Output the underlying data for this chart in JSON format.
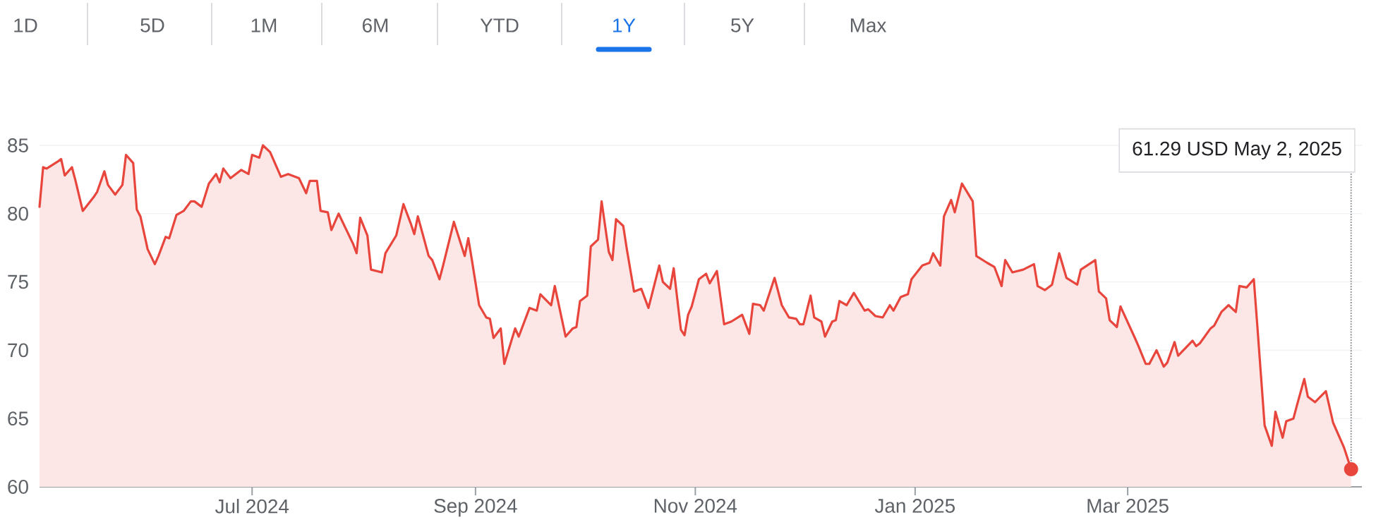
{
  "chart_data": {
    "type": "area",
    "color": "#e8453c",
    "grid": "y",
    "xlim": [
      "2024-05-03",
      "2025-05-05"
    ],
    "ylim": [
      60,
      85
    ],
    "xticks": [
      {
        "value": "2024-07-01",
        "label": "Jul 2024"
      },
      {
        "value": "2024-09-01",
        "label": "Sep 2024"
      },
      {
        "value": "2024-11-01",
        "label": "Nov 2024"
      },
      {
        "value": "2025-01-01",
        "label": "Jan 2025"
      },
      {
        "value": "2025-03-01",
        "label": "Mar 2025"
      }
    ],
    "yticks": [
      60,
      65,
      70,
      75,
      80,
      85
    ],
    "annotations": [
      "1D",
      "5D",
      "1M",
      "6M",
      "YTD",
      "1Y",
      "5Y",
      "Max",
      {
        "text": "61.29 USD  May 2, 2025",
        "x": "2025-05-02",
        "y": 61.29
      }
    ],
    "x": [
      "2024-05-03",
      "2024-05-04",
      "2024-05-05",
      "2024-05-08",
      "2024-05-09",
      "2024-05-10",
      "2024-05-12",
      "2024-05-13",
      "2024-05-15",
      "2024-05-18",
      "2024-05-19",
      "2024-05-21",
      "2024-05-22",
      "2024-05-24",
      "2024-05-26",
      "2024-05-27",
      "2024-05-29",
      "2024-05-30",
      "2024-05-31",
      "2024-06-02",
      "2024-06-04",
      "2024-06-05",
      "2024-06-07",
      "2024-06-08",
      "2024-06-10",
      "2024-06-12",
      "2024-06-14",
      "2024-06-15",
      "2024-06-17",
      "2024-06-19",
      "2024-06-21",
      "2024-06-22",
      "2024-06-23",
      "2024-06-25",
      "2024-06-28",
      "2024-06-30",
      "2024-07-01",
      "2024-07-03",
      "2024-07-04",
      "2024-07-06",
      "2024-07-09",
      "2024-07-11",
      "2024-07-14",
      "2024-07-16",
      "2024-07-17",
      "2024-07-19",
      "2024-07-20",
      "2024-07-22",
      "2024-07-23",
      "2024-07-25",
      "2024-07-29",
      "2024-07-30",
      "2024-07-31",
      "2024-08-02",
      "2024-08-03",
      "2024-08-06",
      "2024-08-07",
      "2024-08-10",
      "2024-08-12",
      "2024-08-14",
      "2024-08-15",
      "2024-08-16",
      "2024-08-19",
      "2024-08-20",
      "2024-08-22",
      "2024-08-23",
      "2024-08-26",
      "2024-08-29",
      "2024-08-30",
      "2024-08-31",
      "2024-09-02",
      "2024-09-04",
      "2024-09-05",
      "2024-09-06",
      "2024-09-08",
      "2024-09-09",
      "2024-09-12",
      "2024-09-13",
      "2024-09-16",
      "2024-09-18",
      "2024-09-19",
      "2024-09-22",
      "2024-09-23",
      "2024-09-26",
      "2024-09-28",
      "2024-09-29",
      "2024-09-30",
      "2024-10-02",
      "2024-10-03",
      "2024-10-05",
      "2024-10-06",
      "2024-10-08",
      "2024-10-09",
      "2024-10-10",
      "2024-10-12",
      "2024-10-13",
      "2024-10-15",
      "2024-10-16",
      "2024-10-17",
      "2024-10-19",
      "2024-10-22",
      "2024-10-23",
      "2024-10-25",
      "2024-10-26",
      "2024-10-28",
      "2024-10-29",
      "2024-10-30",
      "2024-10-31",
      "2024-11-02",
      "2024-11-04",
      "2024-11-05",
      "2024-11-07",
      "2024-11-09",
      "2024-11-11",
      "2024-11-14",
      "2024-11-16",
      "2024-11-17",
      "2024-11-19",
      "2024-11-20",
      "2024-11-23",
      "2024-11-25",
      "2024-11-27",
      "2024-11-29",
      "2024-11-30",
      "2024-12-01",
      "2024-12-03",
      "2024-12-04",
      "2024-12-06",
      "2024-12-07",
      "2024-12-09",
      "2024-12-10",
      "2024-12-11",
      "2024-12-13",
      "2024-12-15",
      "2024-12-18",
      "2024-12-19",
      "2024-12-21",
      "2024-12-23",
      "2024-12-25",
      "2024-12-26",
      "2024-12-28",
      "2024-12-30",
      "2024-12-31",
      "2025-01-03",
      "2025-01-05",
      "2025-01-06",
      "2025-01-08",
      "2025-01-09",
      "2025-01-11",
      "2025-01-12",
      "2025-01-14",
      "2025-01-17",
      "2025-01-18",
      "2025-01-21",
      "2025-01-23",
      "2025-01-25",
      "2025-01-26",
      "2025-01-28",
      "2025-01-31",
      "2025-02-03",
      "2025-02-04",
      "2025-02-06",
      "2025-02-08",
      "2025-02-10",
      "2025-02-12",
      "2025-02-15",
      "2025-02-16",
      "2025-02-20",
      "2025-02-21",
      "2025-02-23",
      "2025-02-24",
      "2025-02-26",
      "2025-02-27",
      "2025-03-03",
      "2025-03-04",
      "2025-03-06",
      "2025-03-07",
      "2025-03-09",
      "2025-03-11",
      "2025-03-12",
      "2025-03-14",
      "2025-03-15",
      "2025-03-19",
      "2025-03-20",
      "2025-03-21",
      "2025-03-24",
      "2025-03-25",
      "2025-03-27",
      "2025-03-29",
      "2025-03-31",
      "2025-04-01",
      "2025-04-03",
      "2025-04-05",
      "2025-04-06",
      "2025-04-08",
      "2025-04-10",
      "2025-04-11",
      "2025-04-13",
      "2025-04-14",
      "2025-04-16",
      "2025-04-17",
      "2025-04-19",
      "2025-04-20",
      "2025-04-22",
      "2025-04-25",
      "2025-04-27",
      "2025-04-30",
      "2025-05-02"
    ],
    "values": [
      80.5,
      83.4,
      83.3,
      83.8,
      84.0,
      82.8,
      83.4,
      82.4,
      80.2,
      81.2,
      81.6,
      83.1,
      82.1,
      81.4,
      82.1,
      84.3,
      83.7,
      80.3,
      79.8,
      77.4,
      76.3,
      76.9,
      78.3,
      78.2,
      79.9,
      80.2,
      80.9,
      80.9,
      80.5,
      82.2,
      82.9,
      82.3,
      83.3,
      82.6,
      83.2,
      82.9,
      84.3,
      84.1,
      85.0,
      84.5,
      82.7,
      82.9,
      82.6,
      81.5,
      82.4,
      82.4,
      80.2,
      80.1,
      78.8,
      80.0,
      77.8,
      77.1,
      79.7,
      78.4,
      75.9,
      75.7,
      77.1,
      78.4,
      80.7,
      79.3,
      78.5,
      79.8,
      76.9,
      76.6,
      75.2,
      76.2,
      79.4,
      76.9,
      78.2,
      76.6,
      73.3,
      72.4,
      72.3,
      70.9,
      71.6,
      69.0,
      71.6,
      71.0,
      73.1,
      72.9,
      74.1,
      73.3,
      74.7,
      71.0,
      71.6,
      71.7,
      73.6,
      74.0,
      77.6,
      78.1,
      80.9,
      77.2,
      76.6,
      79.6,
      79.1,
      77.4,
      74.3,
      74.4,
      74.5,
      73.1,
      76.2,
      75.0,
      74.5,
      76.0,
      71.5,
      71.1,
      72.6,
      73.2,
      75.2,
      75.6,
      74.9,
      75.8,
      71.9,
      72.1,
      72.6,
      71.2,
      73.4,
      73.3,
      72.9,
      75.3,
      73.3,
      72.4,
      72.3,
      71.9,
      71.9,
      74.0,
      72.4,
      72.1,
      71.0,
      72.1,
      72.2,
      73.6,
      73.3,
      74.2,
      72.9,
      73.0,
      72.5,
      72.4,
      73.3,
      72.9,
      73.9,
      74.1,
      75.2,
      76.2,
      76.4,
      77.1,
      76.2,
      79.8,
      81.0,
      80.1,
      82.2,
      80.9,
      76.9,
      76.4,
      76.1,
      74.7,
      76.6,
      75.7,
      75.9,
      76.3,
      74.7,
      74.4,
      74.8,
      77.1,
      75.3,
      74.8,
      75.9,
      76.6,
      74.3,
      73.8,
      72.2,
      71.7,
      73.2,
      70.9,
      70.3,
      69.0,
      69.0,
      70.0,
      68.8,
      69.1,
      70.6,
      69.6,
      70.7,
      70.3,
      70.5,
      71.6,
      71.8,
      72.8,
      73.3,
      72.8,
      74.7,
      74.6,
      75.2,
      71.7,
      64.5,
      63.0,
      65.5,
      63.6,
      64.8,
      65.0,
      66.0,
      67.9,
      66.6,
      66.2,
      67.0,
      64.7,
      62.9,
      61.29
    ]
  }
}
